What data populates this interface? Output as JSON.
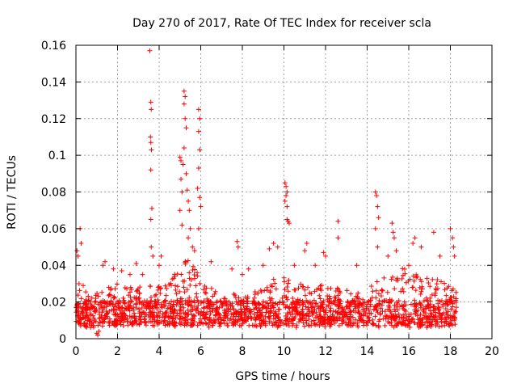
{
  "chart_data": {
    "type": "scatter",
    "title": "Day 270 of 2017, Rate Of TEC Index for receiver scla",
    "xlabel": "GPS time / hours",
    "ylabel": "ROTI / TECUs",
    "xlim": [
      0,
      20
    ],
    "ylim": [
      0,
      0.16
    ],
    "x_ticks": [
      0,
      2,
      4,
      6,
      8,
      10,
      12,
      14,
      16,
      18,
      20
    ],
    "y_ticks": [
      0,
      0.02,
      0.04,
      0.06,
      0.08,
      0.1,
      0.12,
      0.14,
      0.16
    ],
    "x_tick_labels": [
      "0",
      "2",
      "4",
      "6",
      "8",
      "10",
      "12",
      "14",
      "16",
      "18",
      "20"
    ],
    "y_tick_labels": [
      "0",
      "0.02",
      "0.04",
      "0.06",
      "0.08",
      "0.1",
      "0.12",
      "0.14",
      "0.16"
    ],
    "grid": true,
    "marker": "+",
    "color": "#ff0000",
    "data_extent_hours": [
      0,
      18.3
    ],
    "baseline_roti": 0.013,
    "series": [
      {
        "name": "ROTI",
        "points": [
          [
            0.05,
            0.048
          ],
          [
            0.1,
            0.045
          ],
          [
            0.15,
            0.03
          ],
          [
            0.2,
            0.06
          ],
          [
            0.25,
            0.052
          ],
          [
            0.35,
            0.029
          ],
          [
            1.0,
            0.003
          ],
          [
            1.05,
            0.002
          ],
          [
            1.1,
            0.004
          ],
          [
            1.3,
            0.04
          ],
          [
            1.4,
            0.042
          ],
          [
            1.8,
            0.038
          ],
          [
            2.2,
            0.037
          ],
          [
            2.6,
            0.035
          ],
          [
            2.9,
            0.041
          ],
          [
            3.2,
            0.035
          ],
          [
            3.55,
            0.157
          ],
          [
            3.6,
            0.129
          ],
          [
            3.62,
            0.125
          ],
          [
            3.58,
            0.11
          ],
          [
            3.6,
            0.107
          ],
          [
            3.63,
            0.103
          ],
          [
            3.6,
            0.092
          ],
          [
            3.65,
            0.071
          ],
          [
            3.6,
            0.065
          ],
          [
            3.62,
            0.05
          ],
          [
            3.7,
            0.045
          ],
          [
            4.0,
            0.04
          ],
          [
            4.1,
            0.045
          ],
          [
            5.0,
            0.099
          ],
          [
            5.05,
            0.087
          ],
          [
            5.1,
            0.08
          ],
          [
            5.0,
            0.07
          ],
          [
            5.1,
            0.062
          ],
          [
            5.05,
            0.097
          ],
          [
            5.2,
            0.135
          ],
          [
            5.25,
            0.132
          ],
          [
            5.2,
            0.128
          ],
          [
            5.25,
            0.12
          ],
          [
            5.3,
            0.115
          ],
          [
            5.2,
            0.104
          ],
          [
            5.15,
            0.095
          ],
          [
            5.3,
            0.09
          ],
          [
            5.35,
            0.081
          ],
          [
            5.4,
            0.075
          ],
          [
            5.45,
            0.07
          ],
          [
            5.5,
            0.06
          ],
          [
            5.4,
            0.055
          ],
          [
            5.6,
            0.05
          ],
          [
            5.7,
            0.048
          ],
          [
            5.9,
            0.125
          ],
          [
            5.95,
            0.12
          ],
          [
            5.9,
            0.113
          ],
          [
            5.95,
            0.103
          ],
          [
            5.9,
            0.093
          ],
          [
            5.85,
            0.082
          ],
          [
            5.95,
            0.077
          ],
          [
            6.0,
            0.072
          ],
          [
            5.9,
            0.06
          ],
          [
            6.5,
            0.042
          ],
          [
            7.5,
            0.038
          ],
          [
            7.75,
            0.053
          ],
          [
            7.8,
            0.05
          ],
          [
            8.0,
            0.035
          ],
          [
            8.3,
            0.038
          ],
          [
            9.0,
            0.04
          ],
          [
            9.3,
            0.049
          ],
          [
            9.5,
            0.052
          ],
          [
            9.7,
            0.05
          ],
          [
            10.05,
            0.085
          ],
          [
            10.1,
            0.083
          ],
          [
            10.15,
            0.08
          ],
          [
            10.1,
            0.078
          ],
          [
            10.05,
            0.075
          ],
          [
            10.15,
            0.072
          ],
          [
            10.15,
            0.065
          ],
          [
            10.2,
            0.064
          ],
          [
            10.25,
            0.063
          ],
          [
            10.5,
            0.04
          ],
          [
            11.0,
            0.048
          ],
          [
            11.1,
            0.052
          ],
          [
            11.5,
            0.04
          ],
          [
            11.9,
            0.047
          ],
          [
            12.0,
            0.045
          ],
          [
            12.6,
            0.064
          ],
          [
            12.6,
            0.055
          ],
          [
            13.5,
            0.04
          ],
          [
            14.4,
            0.08
          ],
          [
            14.45,
            0.078
          ],
          [
            14.5,
            0.072
          ],
          [
            14.55,
            0.066
          ],
          [
            14.4,
            0.06
          ],
          [
            14.5,
            0.05
          ],
          [
            15.0,
            0.045
          ],
          [
            15.2,
            0.063
          ],
          [
            15.25,
            0.058
          ],
          [
            15.3,
            0.055
          ],
          [
            15.4,
            0.048
          ],
          [
            16.0,
            0.04
          ],
          [
            16.2,
            0.052
          ],
          [
            16.3,
            0.055
          ],
          [
            16.6,
            0.05
          ],
          [
            17.2,
            0.058
          ],
          [
            17.5,
            0.045
          ],
          [
            18.0,
            0.06
          ],
          [
            18.1,
            0.055
          ],
          [
            18.15,
            0.05
          ],
          [
            18.2,
            0.045
          ]
        ]
      }
    ],
    "envelope": {
      "description": "upper envelope of the dense noise band (hours, ROTI)",
      "points": [
        [
          0,
          0.022
        ],
        [
          0.3,
          0.03
        ],
        [
          0.8,
          0.022
        ],
        [
          1.2,
          0.028
        ],
        [
          2.0,
          0.03
        ],
        [
          3.0,
          0.028
        ],
        [
          3.5,
          0.03
        ],
        [
          4.2,
          0.028
        ],
        [
          5.0,
          0.04
        ],
        [
          5.5,
          0.045
        ],
        [
          6.2,
          0.03
        ],
        [
          7.0,
          0.025
        ],
        [
          8.0,
          0.024
        ],
        [
          9.0,
          0.028
        ],
        [
          9.8,
          0.035
        ],
        [
          10.5,
          0.03
        ],
        [
          11.5,
          0.03
        ],
        [
          12.5,
          0.028
        ],
        [
          13.5,
          0.025
        ],
        [
          14.2,
          0.03
        ],
        [
          15.0,
          0.035
        ],
        [
          15.5,
          0.04
        ],
        [
          16.5,
          0.035
        ],
        [
          17.5,
          0.032
        ],
        [
          18.3,
          0.028
        ]
      ]
    }
  }
}
